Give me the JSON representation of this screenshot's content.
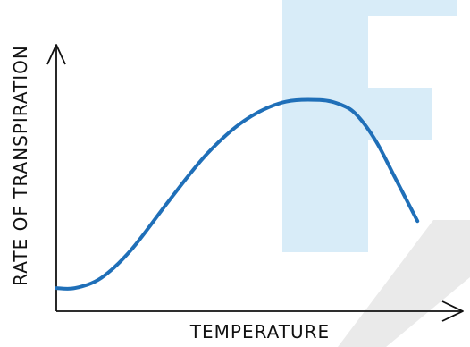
{
  "chart_data": {
    "type": "line",
    "title": "",
    "xlabel": "TEMPERATURE",
    "ylabel": "RATE OF TRANSPIRATION",
    "xlim": [
      0,
      10
    ],
    "ylim": [
      0,
      10
    ],
    "grid": false,
    "x_ticks": [],
    "y_ticks": [],
    "series": [
      {
        "color": "#1f6fb8",
        "x": [
          0,
          0.5,
          1.2,
          2,
          3,
          4,
          5,
          6,
          7,
          7.6,
          8,
          8.5,
          9,
          9.6
        ],
        "y": [
          0.9,
          0.9,
          1.3,
          2.4,
          4.3,
          6.1,
          7.4,
          8.1,
          8.2,
          8.0,
          7.6,
          6.6,
          5.2,
          3.5
        ]
      }
    ]
  },
  "colors": {
    "axis": "#111111",
    "curve": "#1f6fb8",
    "watermark_blue": "#d8ecf8",
    "watermark_gray": "#eaeaea"
  }
}
